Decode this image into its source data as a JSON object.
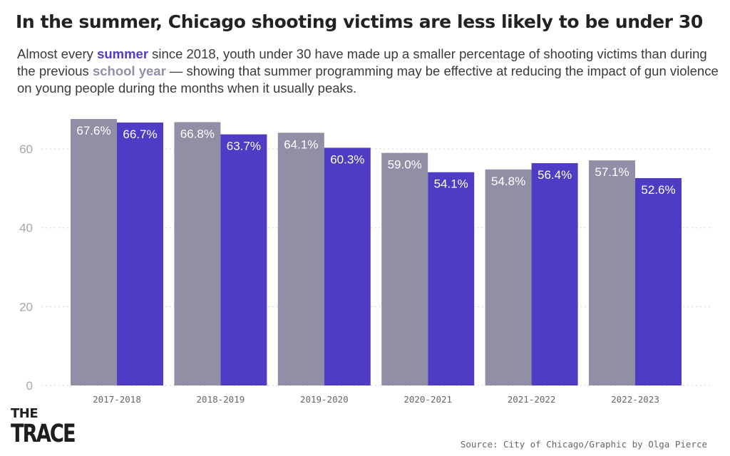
{
  "title": "In the summer, Chicago shooting victims are less likely to be under 30",
  "subtitle": {
    "part1": "Almost every ",
    "keyword_summer": "summer",
    "part2": " since 2018, youth under 30 have made up a smaller percentage of shooting victims than during the previous ",
    "keyword_school_year": "school year",
    "part3": " — showing that summer programming may be effective at reducing the impact of gun violence on young people during the months when it usually peaks."
  },
  "colors": {
    "school_year": "#918fa5",
    "summer": "#4e3cc4",
    "grid": "#c8c8c8"
  },
  "chart_data": {
    "type": "bar",
    "categories": [
      "2017-2018",
      "2018-2019",
      "2019-2020",
      "2020-2021",
      "2021-2022",
      "2022-2023"
    ],
    "series": [
      {
        "name": "school year",
        "values": [
          67.6,
          66.8,
          64.1,
          59.0,
          54.8,
          57.1
        ],
        "labels": [
          "67.6%",
          "66.8%",
          "64.1%",
          "59.0%",
          "54.8%",
          "57.1%"
        ]
      },
      {
        "name": "summer",
        "values": [
          66.7,
          63.7,
          60.3,
          54.1,
          56.4,
          52.6
        ],
        "labels": [
          "66.7%",
          "63.7%",
          "60.3%",
          "54.1%",
          "56.4%",
          "52.6%"
        ]
      }
    ],
    "ylim": [
      0,
      67.6
    ],
    "yticks": [
      0,
      20,
      40,
      60
    ],
    "grid": true,
    "xlabel": "",
    "ylabel": ""
  },
  "logo": {
    "line1": "THE",
    "line2": "TRACE"
  },
  "source": "Source: City of Chicago/Graphic by Olga Pierce"
}
